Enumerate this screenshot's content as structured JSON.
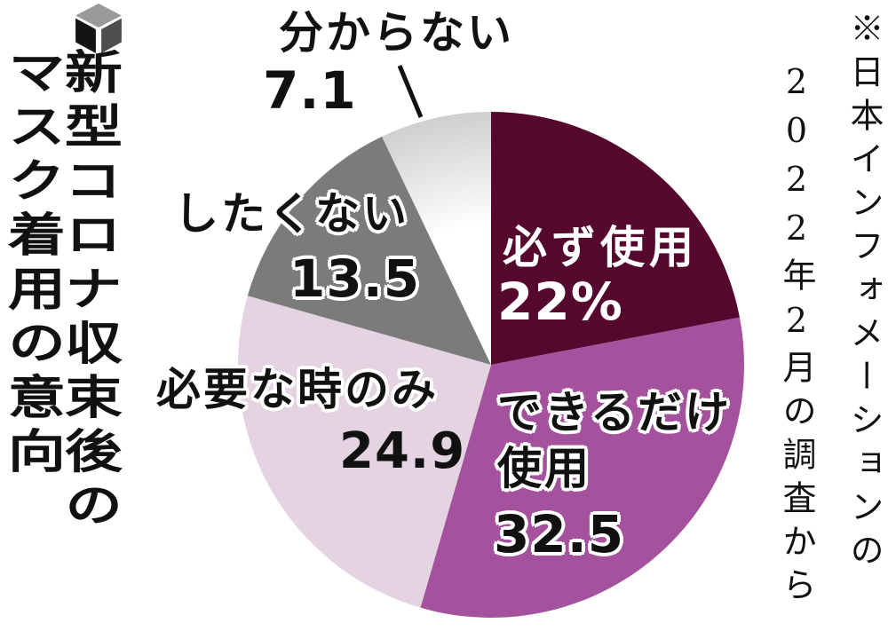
{
  "colors": {
    "background": "#ffffff",
    "label_text": "#111111",
    "halo": "#ffffff",
    "leader_line": "#111111"
  },
  "header": {
    "icon": "cube-icon",
    "title_line1": "新型コロナ収束後の",
    "title_line2": "マスク着用の意向"
  },
  "source_note": {
    "line1": "※日本インフォメーションの",
    "line2": "2022年2月の調査から"
  },
  "chart_data": {
    "type": "pie",
    "title": "新型コロナ収束後のマスク着用の意向",
    "unit": "percent",
    "start_angle_deg": 0,
    "direction": "clockwise",
    "legend_position": "on-slices",
    "slices": [
      {
        "label": "必ず使用",
        "value": 22,
        "display_value": "22%",
        "color": "#55072e",
        "label_color": "#ffffff"
      },
      {
        "label": "できるだけ使用",
        "value": 32.5,
        "display_value": "32.5",
        "color": "#a4529d",
        "label_color": "#111111"
      },
      {
        "label": "必要な時のみ",
        "value": 24.9,
        "display_value": "24.9",
        "color": "#e4d3e0",
        "label_color": "#111111"
      },
      {
        "label": "したくない",
        "value": 13.5,
        "display_value": "13.5",
        "color": "#7b7b7b",
        "label_color": "#111111"
      },
      {
        "label": "分からない",
        "value": 7.1,
        "display_value": "7.1",
        "color": "#ffffff",
        "rim_color": "#cfcfcf",
        "label_color": "#111111"
      }
    ],
    "source": "※日本インフォメーションの2022年2月の調査から"
  }
}
